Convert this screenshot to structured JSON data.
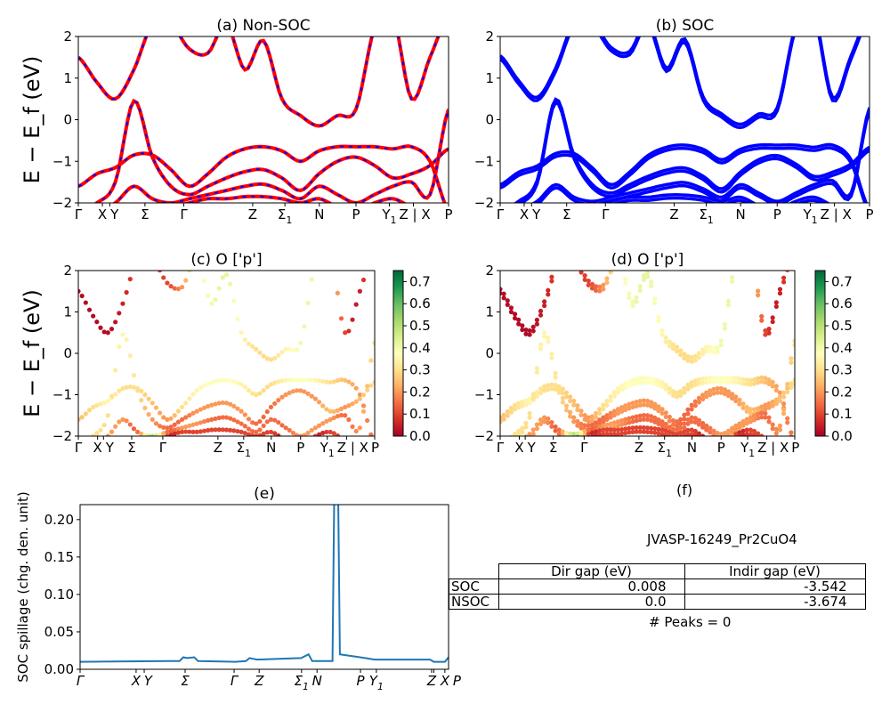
{
  "chart_data": [
    {
      "id": "a",
      "type": "line",
      "title": "(a) Non-SOC",
      "ylabel": "E − E_f (eV)",
      "ylim": [
        -2,
        2
      ],
      "yticks": [
        "−2",
        "−1",
        "0",
        "1",
        "2"
      ],
      "kpath_ticks": [
        {
          "label": "Γ",
          "k": 0
        },
        {
          "label": "X",
          "k": 0.065
        },
        {
          "label": "Y",
          "k": 0.085
        },
        {
          "label": "Σ",
          "k": 0.18
        },
        {
          "label": "Γ",
          "k": 0.285
        },
        {
          "label": "Z",
          "k": 0.471
        },
        {
          "label": "Σ₁",
          "k": 0.558
        },
        {
          "label": "N",
          "k": 0.651
        },
        {
          "label": "P",
          "k": 0.75
        },
        {
          "label": "Y₁",
          "k": 0.84
        },
        {
          "label": "Z | X",
          "k": 0.905
        },
        {
          "label": "P",
          "k": 1.0
        }
      ],
      "colors": {
        "line": "#ff0000",
        "dash": "#0000ff"
      }
    },
    {
      "id": "b",
      "type": "line",
      "title": "(b) SOC",
      "ylim": [
        -2,
        2
      ],
      "yticks": [
        "−2",
        "−1",
        "0",
        "1",
        "2"
      ],
      "colors": {
        "line": "#0000ff"
      }
    },
    {
      "id": "c",
      "type": "scatter",
      "title": "(c)  O ['p']",
      "ylabel": "E − E_f (eV)",
      "ylim": [
        -2,
        2
      ],
      "yticks": [
        "−2",
        "−1",
        "0",
        "1",
        "2"
      ],
      "colorbar": {
        "colormap": "RdYlGn",
        "range": [
          0,
          0.75
        ],
        "ticks": [
          "0.0",
          "0.1",
          "0.2",
          "0.3",
          "0.4",
          "0.5",
          "0.6",
          "0.7"
        ]
      }
    },
    {
      "id": "d",
      "type": "scatter",
      "title": "(d) O ['p']",
      "ylim": [
        -2,
        2
      ],
      "yticks": [
        "−2",
        "−1",
        "0",
        "1",
        "2"
      ],
      "colorbar": {
        "colormap": "RdYlGn",
        "range": [
          0,
          0.75
        ],
        "ticks": [
          "0.0",
          "0.1",
          "0.2",
          "0.3",
          "0.4",
          "0.5",
          "0.6",
          "0.7"
        ]
      }
    },
    {
      "id": "e",
      "type": "line",
      "title": "(e)",
      "ylabel": "SOC spillage (chg. den. unit)",
      "ylim": [
        0,
        0.22
      ],
      "yticks": [
        "0.00",
        "0.05",
        "0.10",
        "0.15",
        "0.20"
      ],
      "kpath_ticks": [
        {
          "label": "Γ",
          "k": 0
        },
        {
          "label": "X",
          "k": 0.152
        },
        {
          "label": "Y",
          "k": 0.174
        },
        {
          "label": "Σ",
          "k": 0.285
        },
        {
          "label": "Γ",
          "k": 0.418
        },
        {
          "label": "Z",
          "k": 0.486
        },
        {
          "label": "Σ₁",
          "k": 0.601
        },
        {
          "label": "N",
          "k": 0.643
        },
        {
          "label": "P",
          "k": 0.761
        },
        {
          "label": "Y₁",
          "k": 0.804
        },
        {
          "label": "Z",
          "k": 0.954
        },
        {
          "label": "X",
          "k": 0.96
        },
        {
          "label": "P",
          "k": 0.99
        }
      ],
      "series": [
        {
          "k": [
            0,
            0.24,
            0.27,
            0.28,
            0.29,
            0.31,
            0.32,
            0.42,
            0.45,
            0.46,
            0.48,
            0.6,
            0.62,
            0.63,
            0.685,
            0.69,
            0.7,
            0.705,
            0.76,
            0.8,
            0.95,
            0.96,
            0.99,
            1.0
          ],
          "values": [
            0.01,
            0.011,
            0.011,
            0.016,
            0.015,
            0.016,
            0.011,
            0.01,
            0.011,
            0.015,
            0.013,
            0.015,
            0.02,
            0.011,
            0.011,
            0.25,
            0.25,
            0.02,
            0.016,
            0.013,
            0.013,
            0.01,
            0.01,
            0.016
          ]
        }
      ],
      "colors": {
        "line": "#1f77b4"
      }
    }
  ],
  "bands": {
    "k": [
      0,
      0.05,
      0.1,
      0.15,
      0.2,
      0.25,
      0.3,
      0.35,
      0.4,
      0.45,
      0.5,
      0.55,
      0.6,
      0.65,
      0.7,
      0.75,
      0.8,
      0.85,
      0.9,
      0.95,
      1.0
    ],
    "energies": [
      [
        1.5,
        0.9,
        0.5,
        1.2,
        2.3,
        2.3,
        1.7,
        1.6,
        2.3,
        1.2,
        1.9,
        0.5,
        0.1,
        -0.15,
        0.1,
        0.25,
        2.2,
        2.5,
        0.5,
        1.5,
        2.5
      ],
      [
        -1.6,
        -1.3,
        -1.15,
        -0.85,
        -0.85,
        -1.2,
        -1.6,
        -1.3,
        -0.9,
        -0.7,
        -0.65,
        -0.75,
        -1.0,
        -0.75,
        -0.65,
        -0.65,
        -0.65,
        -0.7,
        -0.65,
        -1.0,
        -2.2
      ],
      [
        -2.2,
        -2.0,
        -1.5,
        0.45,
        -0.9,
        -1.6,
        -1.8,
        -1.6,
        -1.4,
        -1.25,
        -1.2,
        -1.4,
        -1.7,
        -1.3,
        -1.0,
        -0.9,
        -1.1,
        -1.4,
        -1.3,
        -1.1,
        -0.7
      ],
      [
        -2.3,
        -2.2,
        -2.0,
        -1.6,
        -1.9,
        -2.0,
        -1.9,
        -1.8,
        -1.7,
        -1.6,
        -1.55,
        -1.7,
        -1.9,
        -1.6,
        -1.8,
        -2.0,
        -1.8,
        -1.6,
        -1.5,
        -1.8,
        0.25
      ],
      [
        -2.5,
        -2.4,
        -2.2,
        -2.1,
        -2.2,
        -2.1,
        -2.0,
        -1.9,
        -1.9,
        -1.85,
        -1.85,
        -1.9,
        -2.0,
        -1.9,
        -2.1,
        -2.2,
        -2.0,
        -1.9,
        -2.1,
        -2.2,
        -2.3
      ]
    ],
    "o_p_weights": [
      [
        0.02,
        0.02,
        0.02,
        0.05,
        0.1,
        0.1,
        0.1,
        0.2,
        0.35,
        0.4,
        0.42,
        0.35,
        0.3,
        0.3,
        0.35,
        0.4,
        0.4,
        0.3,
        0.1,
        0.05,
        0.2
      ],
      [
        0.25,
        0.3,
        0.35,
        0.3,
        0.3,
        0.25,
        0.2,
        0.3,
        0.35,
        0.38,
        0.38,
        0.35,
        0.3,
        0.3,
        0.35,
        0.38,
        0.35,
        0.3,
        0.25,
        0.2,
        0.15
      ],
      [
        0.25,
        0.3,
        0.3,
        0.35,
        0.3,
        0.2,
        0.15,
        0.15,
        0.2,
        0.2,
        0.2,
        0.2,
        0.15,
        0.15,
        0.2,
        0.2,
        0.2,
        0.25,
        0.2,
        0.25,
        0.3
      ],
      [
        0.15,
        0.15,
        0.2,
        0.2,
        0.15,
        0.5,
        0.15,
        0.2,
        0.2,
        0.15,
        0.15,
        0.15,
        0.15,
        0.15,
        0.15,
        0.2,
        0.2,
        0.2,
        0.15,
        0.2,
        0.3
      ],
      [
        0.7,
        0.2,
        0.1,
        0.1,
        0.1,
        0.7,
        0.1,
        0.1,
        0.1,
        0.1,
        0.1,
        0.1,
        0.1,
        0.1,
        0.1,
        0.7,
        0.1,
        0.1,
        0.1,
        0.1,
        0.1
      ]
    ]
  },
  "table_panel": {
    "title": "(f)",
    "material": "JVASP-16249_Pr2CuO4",
    "columns": [
      "Dir gap (eV)",
      "Indir gap (eV)"
    ],
    "rows": [
      {
        "label": "SOC",
        "dir": "0.008",
        "indir": "-3.542"
      },
      {
        "label": "NSOC",
        "dir": "0.0",
        "indir": "-3.674"
      }
    ],
    "peaks": "# Peaks = 0"
  }
}
